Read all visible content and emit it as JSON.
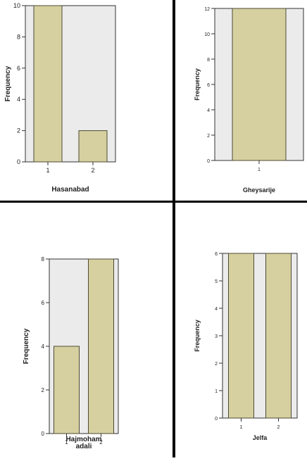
{
  "colors": {
    "plot_bg": "#ebebeb",
    "bar_fill": "#d6d0a0",
    "bar_stroke": "#4d4a35",
    "axis": "#333333",
    "divider": "#000000"
  },
  "chart_data": [
    {
      "type": "bar",
      "categories": [
        "1",
        "2"
      ],
      "values": [
        10,
        2
      ],
      "xlabel": "Hasanabad",
      "ylabel": "Frequency",
      "ylim": [
        0,
        10
      ],
      "yticks": [
        0,
        2,
        4,
        6,
        8,
        10
      ]
    },
    {
      "type": "bar",
      "categories": [
        "1"
      ],
      "values": [
        12
      ],
      "xlabel": "Gheysarije",
      "ylabel": "Frequency",
      "ylim": [
        0,
        12
      ],
      "yticks": [
        0,
        2,
        4,
        6,
        8,
        10,
        12
      ]
    },
    {
      "type": "bar",
      "categories": [
        "1",
        "2"
      ],
      "values": [
        4,
        8
      ],
      "xlabel": "Hajmoham adali",
      "ylabel": "Frequency",
      "ylim": [
        0,
        8
      ],
      "yticks": [
        0,
        2,
        4,
        6,
        8
      ]
    },
    {
      "type": "bar",
      "categories": [
        "1",
        "2"
      ],
      "values": [
        6,
        6
      ],
      "xlabel": "Jelfa",
      "ylabel": "Frequency",
      "ylim": [
        0,
        6
      ],
      "yticks": [
        0,
        1,
        2,
        3,
        4,
        5,
        6
      ]
    }
  ]
}
